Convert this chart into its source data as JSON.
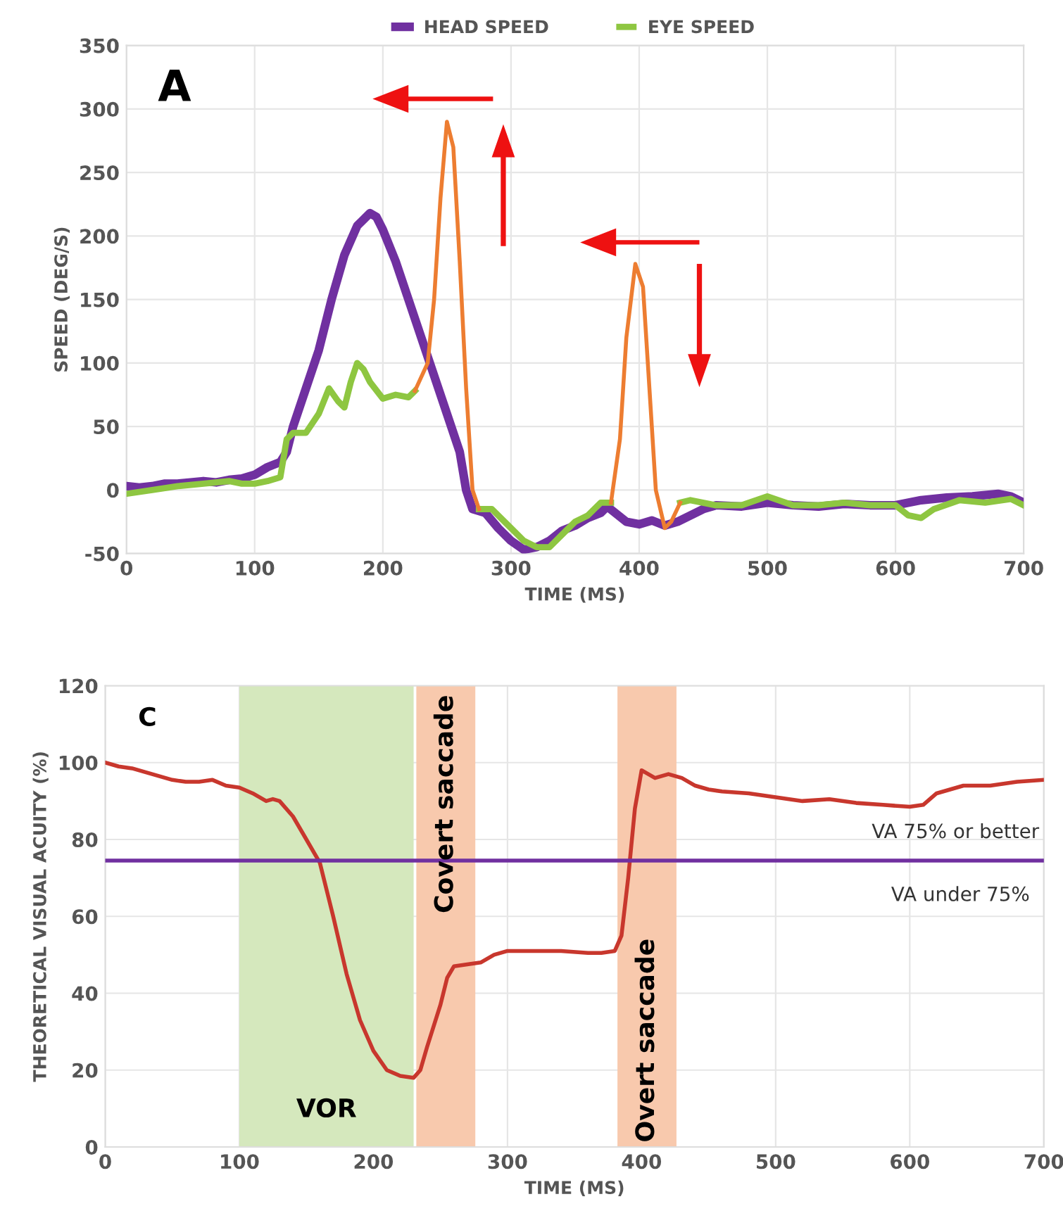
{
  "chart_data": [
    {
      "type": "line",
      "xlabel": "TIME (MS)",
      "ylabel": "SPEED (DEG/S)",
      "annotations": [
        "A"
      ],
      "xlim": [
        0,
        700
      ],
      "xticks": [
        0,
        100,
        200,
        300,
        400,
        500,
        600,
        700
      ],
      "ylim": [
        -50,
        350
      ],
      "yticks": [
        -50,
        0,
        50,
        100,
        150,
        200,
        250,
        300,
        350
      ],
      "grid": true,
      "legend": "top",
      "marker": "none",
      "line_style": "solid",
      "series": [
        {
          "name": "HEAD SPEED",
          "color": "#7030a0",
          "x": [
            0,
            10,
            20,
            30,
            40,
            50,
            60,
            70,
            80,
            90,
            100,
            110,
            120,
            125,
            130,
            140,
            150,
            160,
            170,
            180,
            190,
            195,
            200,
            210,
            220,
            230,
            240,
            250,
            260,
            265,
            270,
            280,
            290,
            300,
            310,
            320,
            330,
            340,
            350,
            360,
            370,
            375,
            380,
            390,
            400,
            410,
            420,
            430,
            440,
            450,
            460,
            480,
            500,
            520,
            540,
            560,
            580,
            600,
            620,
            640,
            660,
            680,
            690,
            700
          ],
          "values": [
            3,
            2,
            3,
            5,
            5,
            6,
            7,
            6,
            8,
            9,
            12,
            18,
            22,
            30,
            50,
            80,
            110,
            150,
            185,
            208,
            218,
            215,
            205,
            180,
            150,
            120,
            90,
            60,
            30,
            0,
            -15,
            -18,
            -30,
            -40,
            -47,
            -45,
            -40,
            -32,
            -28,
            -22,
            -18,
            -13,
            -17,
            -25,
            -27,
            -24,
            -28,
            -25,
            -20,
            -15,
            -12,
            -13,
            -10,
            -12,
            -13,
            -11,
            -12,
            -12,
            -8,
            -6,
            -5,
            -3,
            -5,
            -10
          ]
        },
        {
          "name": "EYE SPEED",
          "color": "#8ec641",
          "x": [
            0,
            20,
            40,
            60,
            80,
            90,
            100,
            110,
            120,
            125,
            130,
            140,
            150,
            158,
            165,
            170,
            175,
            180,
            185,
            190,
            200,
            210,
            220,
            225,
            250,
            275,
            285,
            295,
            300,
            310,
            320,
            330,
            340,
            350,
            360,
            370,
            378,
            400,
            432,
            440,
            460,
            480,
            500,
            520,
            540,
            560,
            580,
            600,
            610,
            620,
            630,
            650,
            670,
            690,
            700
          ],
          "values": [
            -3,
            0,
            3,
            5,
            7,
            5,
            5,
            7,
            10,
            40,
            45,
            45,
            60,
            80,
            70,
            65,
            85,
            100,
            95,
            85,
            72,
            75,
            73,
            78,
            null,
            -15,
            -15,
            -25,
            -30,
            -40,
            -45,
            -45,
            -35,
            -25,
            -20,
            -10,
            -10,
            null,
            -10,
            -8,
            -12,
            -12,
            -5,
            -12,
            -12,
            -10,
            -12,
            -12,
            -20,
            -22,
            -15,
            -8,
            -10,
            -7,
            -12
          ]
        },
        {
          "color": "#ed7d31",
          "x": [
            225,
            235,
            240,
            245,
            250,
            255,
            260,
            265,
            270,
            275,
            320,
            378,
            385,
            390,
            397,
            403,
            408,
            413,
            420,
            425,
            432
          ],
          "values": [
            78,
            100,
            150,
            230,
            290,
            270,
            180,
            80,
            0,
            -15,
            null,
            -10,
            40,
            120,
            178,
            160,
            80,
            0,
            -30,
            -25,
            -10
          ]
        }
      ]
    },
    {
      "type": "line",
      "xlabel": "TIME (MS)",
      "ylabel": "THEORETICAL VISUAL ACUITY (%)",
      "annotations": [
        "C",
        "VA under 75%"
      ],
      "xlim": [
        0,
        700
      ],
      "xticks": [
        0,
        100,
        200,
        300,
        400,
        500,
        600,
        {
          "value": 700,
          "label": "700"
        }
      ],
      "ylim": [
        0,
        120
      ],
      "yticks": [
        0,
        20,
        40,
        60,
        80,
        100,
        120
      ],
      "grid": true,
      "marker": "none",
      "line_style": "solid",
      "bands": [
        {
          "axis": "x",
          "from": 100,
          "to": 230,
          "label": "VOR",
          "color": "#d5e8bd"
        },
        {
          "axis": "x",
          "from": 232,
          "to": 276,
          "label": "Covert saccade",
          "color": "#f8c9ad"
        },
        {
          "axis": "x",
          "from": 382,
          "to": 426,
          "label": "Overt saccade",
          "color": "#f8c9ad"
        }
      ],
      "ref_lines": [
        {
          "axis": "y",
          "value": 74.5,
          "label": "VA 75% or better",
          "color": "#7030a0"
        }
      ],
      "series": [
        {
          "color": "#c8372d",
          "x": [
            0,
            10,
            20,
            30,
            40,
            50,
            60,
            70,
            80,
            90,
            100,
            110,
            120,
            125,
            130,
            140,
            150,
            160,
            170,
            180,
            190,
            200,
            210,
            220,
            230,
            235,
            240,
            250,
            255,
            260,
            270,
            280,
            290,
            300,
            320,
            340,
            360,
            370,
            380,
            385,
            390,
            395,
            400,
            405,
            410,
            420,
            430,
            440,
            450,
            460,
            480,
            500,
            520,
            540,
            560,
            580,
            600,
            610,
            620,
            640,
            660,
            680,
            700
          ],
          "values": [
            100,
            99,
            98.5,
            97.5,
            96.5,
            95.5,
            95,
            95,
            95.5,
            94,
            93.5,
            92,
            90,
            90.5,
            90,
            86,
            80,
            74,
            60,
            45,
            33,
            25,
            20,
            18.5,
            18,
            20,
            26,
            37,
            44,
            47,
            47.5,
            48,
            50,
            51,
            51,
            51,
            50.5,
            50.5,
            51,
            55,
            70,
            88,
            98,
            97,
            96,
            97,
            96,
            94,
            93,
            92.5,
            92,
            91,
            90,
            90.5,
            89.5,
            89,
            88.5,
            89,
            92,
            94,
            94,
            95,
            95.5
          ]
        }
      ]
    }
  ]
}
